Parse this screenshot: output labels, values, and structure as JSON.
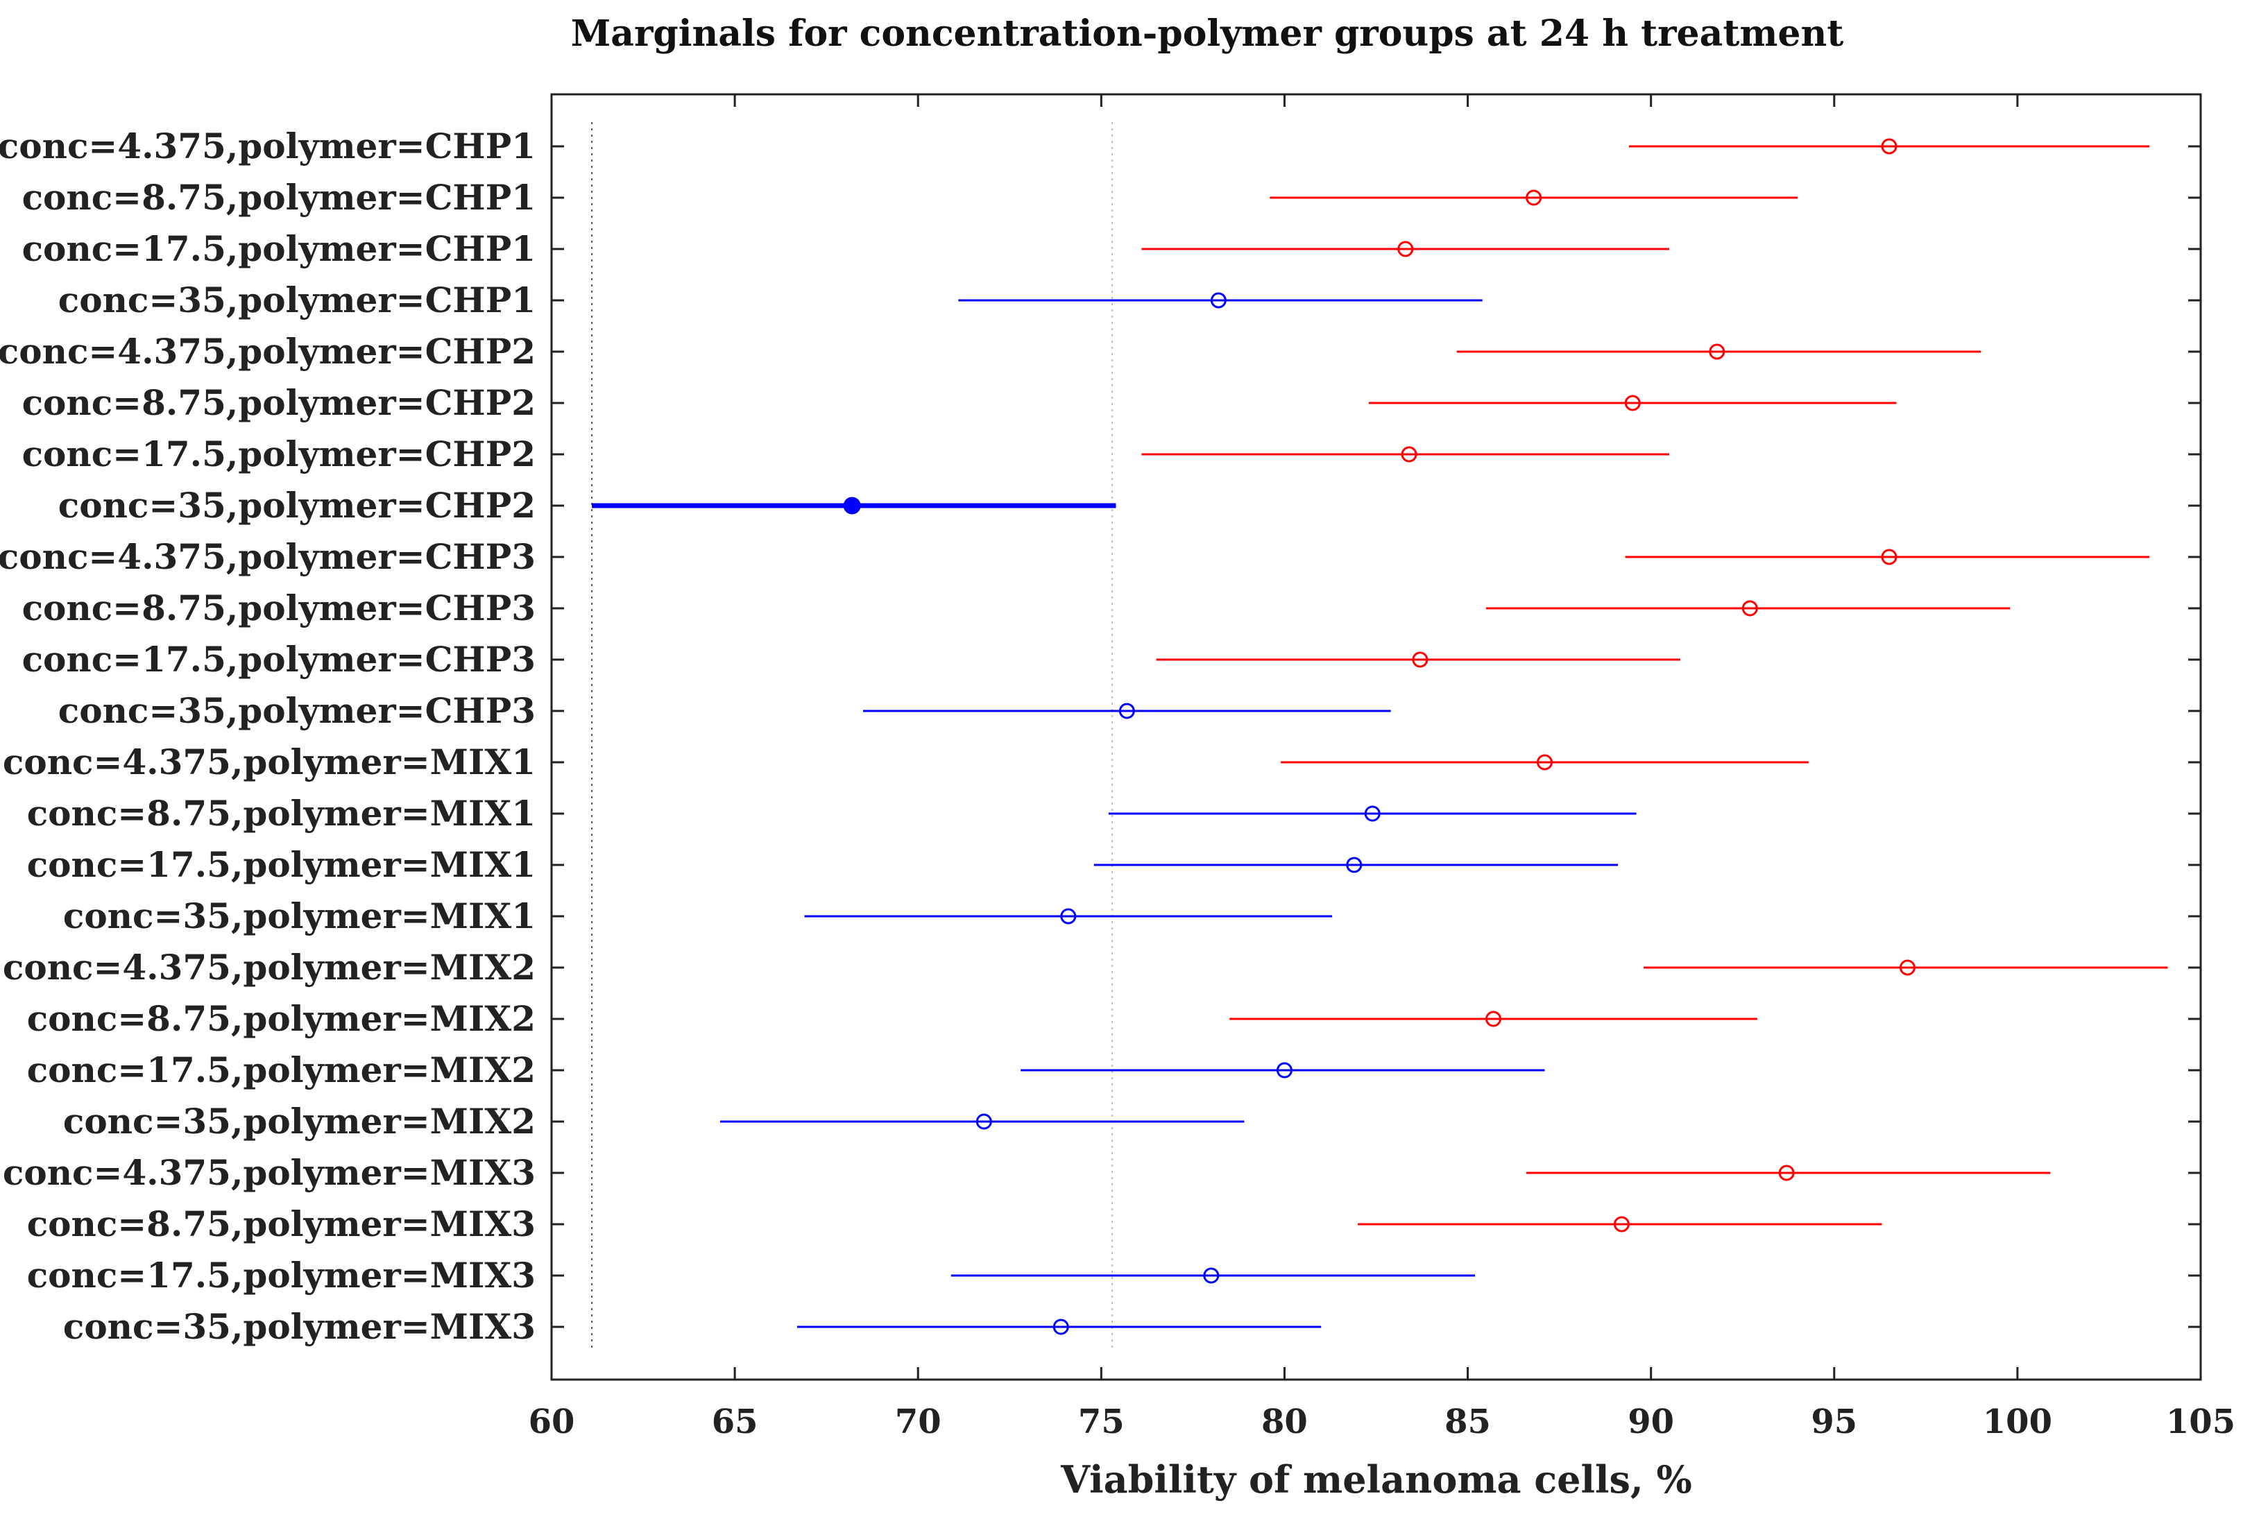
{
  "chart_data": {
    "type": "scatter",
    "title": "Marginals for concentration-polymer groups at 24 h treatment",
    "xlabel": "Viability of melanoma cells, %",
    "ylabel": "",
    "xlim": [
      60,
      105
    ],
    "xticks": [
      60,
      65,
      70,
      75,
      80,
      85,
      90,
      95,
      100,
      105
    ],
    "reference_lines": [
      61.1,
      75.3
    ],
    "series_colors": {
      "significant": "#0000ff",
      "not_significant": "#ff0000"
    },
    "groups": [
      {
        "label": "conc=4.375,polymer=CHP1",
        "mean": 96.5,
        "lower": 89.4,
        "upper": 103.6,
        "color": "red"
      },
      {
        "label": "conc=8.75,polymer=CHP1",
        "mean": 86.8,
        "lower": 79.6,
        "upper": 94.0,
        "color": "red"
      },
      {
        "label": "conc=17.5,polymer=CHP1",
        "mean": 83.3,
        "lower": 76.1,
        "upper": 90.5,
        "color": "red"
      },
      {
        "label": "conc=35,polymer=CHP1",
        "mean": 78.2,
        "lower": 71.1,
        "upper": 85.4,
        "color": "blue"
      },
      {
        "label": "conc=4.375,polymer=CHP2",
        "mean": 91.8,
        "lower": 84.7,
        "upper": 99.0,
        "color": "red"
      },
      {
        "label": "conc=8.75,polymer=CHP2",
        "mean": 89.5,
        "lower": 82.3,
        "upper": 96.7,
        "color": "red"
      },
      {
        "label": "conc=17.5,polymer=CHP2",
        "mean": 83.4,
        "lower": 76.1,
        "upper": 90.5,
        "color": "red"
      },
      {
        "label": "conc=35,polymer=CHP2",
        "mean": 68.2,
        "lower": 61.1,
        "upper": 75.4,
        "color": "blue",
        "highlighted": true
      },
      {
        "label": "conc=4.375,polymer=CHP3",
        "mean": 96.5,
        "lower": 89.3,
        "upper": 103.6,
        "color": "red"
      },
      {
        "label": "conc=8.75,polymer=CHP3",
        "mean": 92.7,
        "lower": 85.5,
        "upper": 99.8,
        "color": "red"
      },
      {
        "label": "conc=17.5,polymer=CHP3",
        "mean": 83.7,
        "lower": 76.5,
        "upper": 90.8,
        "color": "red"
      },
      {
        "label": "conc=35,polymer=CHP3",
        "mean": 75.7,
        "lower": 68.5,
        "upper": 82.9,
        "color": "blue"
      },
      {
        "label": "conc=4.375,polymer=MIX1",
        "mean": 87.1,
        "lower": 79.9,
        "upper": 94.3,
        "color": "red"
      },
      {
        "label": "conc=8.75,polymer=MIX1",
        "mean": 82.4,
        "lower": 75.2,
        "upper": 89.6,
        "color": "blue"
      },
      {
        "label": "conc=17.5,polymer=MIX1",
        "mean": 81.9,
        "lower": 74.8,
        "upper": 89.1,
        "color": "blue"
      },
      {
        "label": "conc=35,polymer=MIX1",
        "mean": 74.1,
        "lower": 66.9,
        "upper": 81.3,
        "color": "blue"
      },
      {
        "label": "conc=4.375,polymer=MIX2",
        "mean": 97.0,
        "lower": 89.8,
        "upper": 104.1,
        "color": "red"
      },
      {
        "label": "conc=8.75,polymer=MIX2",
        "mean": 85.7,
        "lower": 78.5,
        "upper": 92.9,
        "color": "red"
      },
      {
        "label": "conc=17.5,polymer=MIX2",
        "mean": 80.0,
        "lower": 72.8,
        "upper": 87.1,
        "color": "blue"
      },
      {
        "label": "conc=35,polymer=MIX2",
        "mean": 71.8,
        "lower": 64.6,
        "upper": 78.9,
        "color": "blue"
      },
      {
        "label": "conc=4.375,polymer=MIX3",
        "mean": 93.7,
        "lower": 86.6,
        "upper": 100.9,
        "color": "red"
      },
      {
        "label": "conc=8.75,polymer=MIX3",
        "mean": 89.2,
        "lower": 82.0,
        "upper": 96.3,
        "color": "red"
      },
      {
        "label": "conc=17.5,polymer=MIX3",
        "mean": 78.0,
        "lower": 70.9,
        "upper": 85.2,
        "color": "blue"
      },
      {
        "label": "conc=35,polymer=MIX3",
        "mean": 73.9,
        "lower": 66.7,
        "upper": 81.0,
        "color": "blue"
      }
    ]
  }
}
